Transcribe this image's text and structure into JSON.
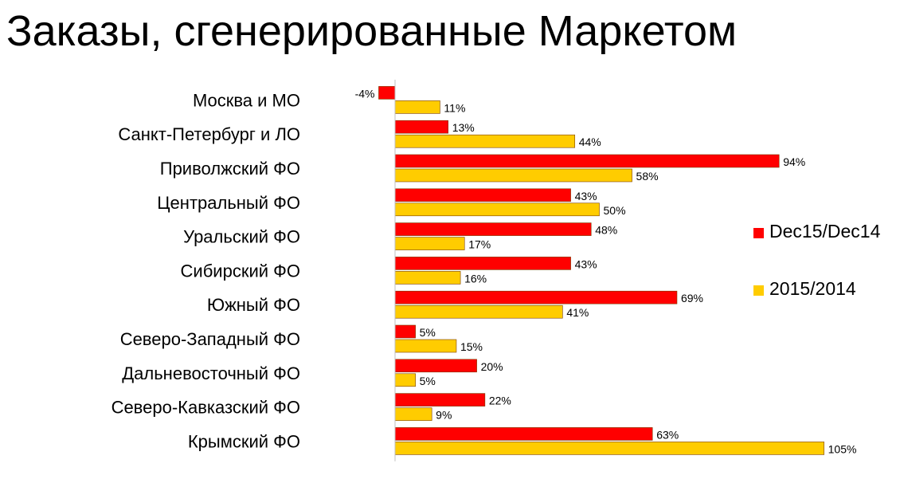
{
  "title": "Заказы, сгенерированные Маркетом",
  "colors": {
    "series1": "#ff0000",
    "series2": "#ffcc00",
    "bar_stroke": "#7a3d00",
    "axis": "#bfbfbf"
  },
  "chart_data": {
    "type": "bar",
    "orientation": "horizontal",
    "title": "Заказы, сгенерированные Маркетом",
    "categories": [
      "Москва и МО",
      "Санкт-Петербург и ЛО",
      "Приволжский ФО",
      "Центральный ФО",
      "Уральский ФО",
      "Сибирский ФО",
      "Южный ФО",
      "Северо-Западный ФО",
      "Дальневосточный ФО",
      "Северо-Кавказский ФО",
      "Крымский ФО"
    ],
    "series": [
      {
        "name": "Dec15/Dec14",
        "color": "#ff0000",
        "values": [
          -4,
          13,
          94,
          43,
          48,
          43,
          69,
          5,
          20,
          22,
          63
        ]
      },
      {
        "name": "2015/2014",
        "color": "#ffcc00",
        "values": [
          11,
          44,
          58,
          50,
          17,
          16,
          41,
          15,
          5,
          9,
          105
        ]
      }
    ],
    "value_suffix": "%",
    "xlim": [
      -4,
      105
    ],
    "grid": false,
    "data_labels": true,
    "legend_position": "right"
  }
}
